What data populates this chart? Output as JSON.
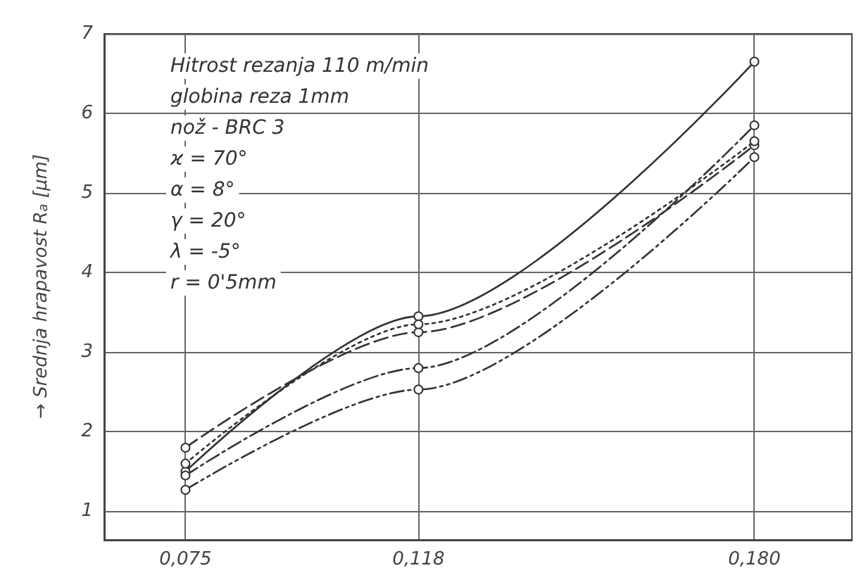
{
  "chart_data": {
    "type": "line",
    "ylabel": "→ Srednja hrapavost R$_{a}$ [µm]",
    "x": [
      0.075,
      0.118,
      0.18
    ],
    "xlim": [
      0.06,
      0.198
    ],
    "xticks": [
      {
        "value": 0.075,
        "label": "0,075"
      },
      {
        "value": 0.118,
        "label": "0,118"
      },
      {
        "value": 0.18,
        "label": "0,180"
      }
    ],
    "ylim": [
      0.65,
      7
    ],
    "yticks": [
      1,
      2,
      3,
      4,
      5,
      6,
      7
    ],
    "series": [
      {
        "color": "#333333",
        "line_style": "solid",
        "values": [
          1.5,
          3.45,
          6.65
        ]
      },
      {
        "color": "#333333",
        "line_style": "dashed",
        "values": [
          1.8,
          3.25,
          5.6
        ]
      },
      {
        "color": "#333333",
        "line_style": "dotted",
        "values": [
          1.6,
          3.35,
          5.65
        ]
      },
      {
        "color": "#333333",
        "line_style": "dashdot",
        "values": [
          1.45,
          2.8,
          5.85
        ]
      },
      {
        "color": "#333333",
        "line_style": "dashdotdot",
        "values": [
          1.27,
          2.53,
          5.45
        ]
      }
    ],
    "annotations": [
      "Hitrost rezanja 110 m/min",
      "globina reza 1mm",
      "nož - BRC 3",
      "ϰ = 70°",
      "α = 8°",
      "γ = 20°",
      "λ = -5°",
      "r = 0'5mm"
    ],
    "grid": true,
    "marker": "circle"
  }
}
